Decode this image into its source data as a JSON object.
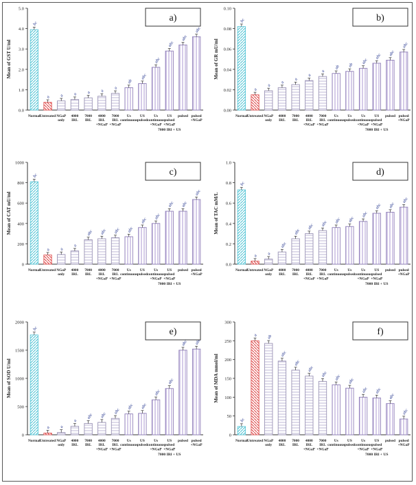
{
  "colors": {
    "normal": "#5ec8d8",
    "untreated": "#e05555",
    "treated": "#c9c3dd",
    "combo": "#b9a9d8",
    "sig": "#1d2f8a"
  },
  "chart_data": [
    {
      "type": "bar",
      "panel_label": "a)",
      "ylabel": "Mean of GST U/ml",
      "ylim": [
        0,
        5
      ],
      "yticks": [
        "0.0",
        "1.0",
        "2.0",
        "3.0",
        "4.0",
        "5.0"
      ],
      "categories": [
        "Normal",
        "Untreated",
        "NGaP only",
        "4000 IRL",
        "7000 IRL",
        "4000 IRL +NGaP",
        "7000 IRL +NGaP",
        "Us continuous",
        "US pulsed",
        "Us continuous +NGaP",
        "US pulsed +NGaP",
        "pulsed",
        "pulsed +NGaP"
      ],
      "group_label": "7000 IRl + US",
      "values": [
        3.95,
        0.38,
        0.45,
        0.52,
        0.6,
        0.68,
        0.82,
        1.1,
        1.3,
        2.1,
        2.9,
        3.2,
        3.6
      ],
      "annotations": [
        "bc",
        "a",
        "a",
        "a",
        "a",
        "a",
        "a",
        "ab",
        "abc",
        "abc",
        "abc",
        "abc",
        "abc"
      ]
    },
    {
      "type": "bar",
      "panel_label": "b)",
      "ylabel": "Mean of GR mU/ml",
      "ylim": [
        0,
        0.1
      ],
      "yticks": [
        "0.00",
        "0.02",
        "0.04",
        "0.06",
        "0.08",
        "0.10"
      ],
      "categories": [
        "Normal",
        "Untreated",
        "NGaP only",
        "4000 IRL",
        "7000 IRL",
        "4000 IRL +NGaP",
        "7000 IRL +NGaP",
        "Us continuous",
        "Us pulsed",
        "Us continuous +NGaP",
        "US pulsed +NGaP",
        "pulsed",
        "pulsed +NGaP"
      ],
      "group_label": "7000 IRl + US",
      "values": [
        0.082,
        0.015,
        0.019,
        0.022,
        0.025,
        0.029,
        0.033,
        0.036,
        0.038,
        0.041,
        0.046,
        0.049,
        0.057
      ],
      "annotations": [
        "bc",
        "a",
        "a",
        "a",
        "a",
        "a",
        "a",
        "ab",
        "ab",
        "abc",
        "abc",
        "abc",
        "abc"
      ]
    },
    {
      "type": "bar",
      "panel_label": "c)",
      "ylabel": "Mean of CAT mU/ml",
      "ylim": [
        0,
        1000
      ],
      "yticks": [
        "0",
        "200",
        "400",
        "600",
        "800",
        "1000"
      ],
      "categories": [
        "Normal",
        "Untreated",
        "NGaP only",
        "4000 IRL",
        "7000 IRL",
        "4000 IRL +NGaP",
        "7000 IRL +NGaP",
        "Us continuous",
        "US pulsed",
        "Us continuous +NGaP",
        "US pulsed +NGaP",
        "pulsed",
        "pulsed +NGaP"
      ],
      "group_label": "7000 IRl + US",
      "values": [
        810,
        90,
        95,
        130,
        240,
        250,
        260,
        270,
        360,
        400,
        520,
        520,
        635
      ],
      "annotations": [
        "bc",
        "a",
        "a",
        "a",
        "abc",
        "abc",
        "abc",
        "abc",
        "abc",
        "abc",
        "abc",
        "abc",
        "abc"
      ]
    },
    {
      "type": "bar",
      "panel_label": "d)",
      "ylabel": "Mean of TAC mM/L",
      "ylim": [
        0,
        1
      ],
      "yticks": [
        "0.0",
        "0.2",
        "0.4",
        "0.6",
        "0.8",
        "1.0"
      ],
      "categories": [
        "Normal",
        "Untreated",
        "NGaP only",
        "4000 IRL",
        "7000 IRL",
        "4000 IRL +NGaP",
        "7000 IRL +NGaP",
        "Us continuous",
        "Us pulsed",
        "Us continuous +NGaP",
        "US pulsed +NGaP",
        "pulsed",
        "pulsed +NGaP"
      ],
      "group_label": "7000 IRl + US",
      "values": [
        0.73,
        0.03,
        0.05,
        0.12,
        0.25,
        0.3,
        0.33,
        0.36,
        0.37,
        0.42,
        0.5,
        0.51,
        0.56
      ],
      "annotations": [
        "bc",
        "a",
        "a",
        "abc",
        "abc",
        "abc",
        "abc",
        "abc",
        "abc",
        "abc",
        "abc",
        "abc",
        "abc"
      ]
    },
    {
      "type": "bar",
      "panel_label": "e)",
      "ylabel": "Mean of SOD U/ml",
      "ylim": [
        0,
        2000
      ],
      "yticks": [
        "0",
        "500",
        "1000",
        "1500",
        "2000"
      ],
      "categories": [
        "Normal",
        "Untreated",
        "NGaP only",
        "4000 IRL",
        "7000 IRL",
        "4000 IRL +NGaP",
        "7000 IRL +NGaP",
        "Us continuous",
        "US pulsed",
        "Us continuous +NGaP",
        "US pulsed +NGaP",
        "pulsed",
        "pulsed +NGaP"
      ],
      "group_label": "7000 IRl + US",
      "values": [
        1770,
        30,
        40,
        150,
        200,
        220,
        290,
        370,
        380,
        620,
        820,
        1500,
        1520
      ],
      "annotations": [
        "bc",
        "a",
        "a",
        "a",
        "abc",
        "abc",
        "abc",
        "abc",
        "abc",
        "abc",
        "abc",
        "abc",
        "abc"
      ]
    },
    {
      "type": "bar",
      "panel_label": "f)",
      "ylabel": "Mean of MDA mmol/ml",
      "ylim": [
        0,
        300
      ],
      "yticks": [
        "0",
        "50",
        "100",
        "150",
        "200",
        "250",
        "300"
      ],
      "categories": [
        "Normal",
        "Untreated",
        "NGaP only",
        "4000 IRL",
        "7000 IRL",
        "4000 IRL +NGaP",
        "7000 IRL +NGaP",
        "Us continuous",
        "US pulsed",
        "Us continuous +NGaP",
        "US pulsed +NGaP",
        "pulsed",
        "pulsed +NGaP"
      ],
      "group_label": "7000 IRl + US",
      "values": [
        22,
        250,
        243,
        196,
        172,
        156,
        142,
        133,
        124,
        100,
        98,
        83,
        42
      ],
      "annotations": [
        "bc",
        "a",
        "ab",
        "abc",
        "abc",
        "abc",
        "abc",
        "abc",
        "abc",
        "abc",
        "abc",
        "abc",
        "abc"
      ]
    }
  ]
}
